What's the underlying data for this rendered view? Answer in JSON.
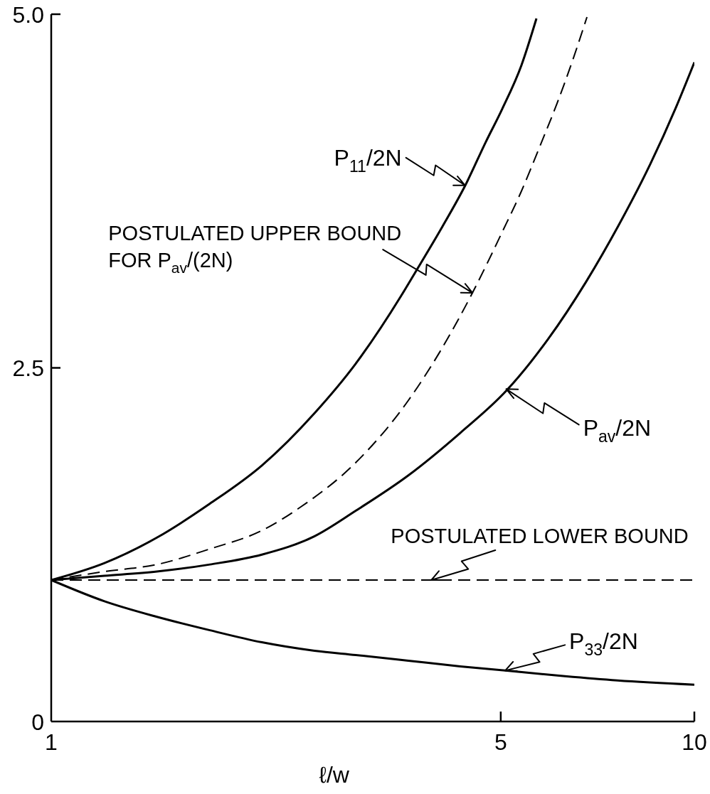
{
  "chart_data": {
    "type": "line",
    "xlabel": "ℓ/w",
    "log": "x",
    "xlim": [
      1,
      10
    ],
    "xticks": [
      1,
      5,
      10
    ],
    "ylim": [
      0,
      5
    ],
    "yticks": [
      0,
      2.5,
      {
        "value": 5,
        "label": "5.0"
      }
    ],
    "series": [
      {
        "color": "#000000",
        "line_style": "solid",
        "x": [
          1,
          1.21,
          1.46,
          1.765,
          2.126,
          2.567,
          2.975,
          3.501,
          3.676,
          4.059,
          4.404,
          4.743,
          5.026,
          5.385,
          5.682
        ],
        "values": [
          1.0,
          1.12,
          1.3,
          1.54,
          1.81,
          2.18,
          2.53,
          3.01,
          3.17,
          3.5,
          3.79,
          4.1,
          4.33,
          4.64,
          4.97
        ]
      },
      {
        "color": "#000000",
        "line_style": "dashed",
        "x": [
          1,
          1.21,
          1.46,
          1.765,
          2.126,
          2.449,
          2.975,
          3.592,
          4.029,
          4.518,
          5.026,
          5.385,
          5.768,
          6.117,
          6.486,
          6.808
        ],
        "values": [
          1.0,
          1.06,
          1.11,
          1.22,
          1.35,
          1.52,
          1.83,
          2.27,
          2.62,
          3.03,
          3.46,
          3.75,
          4.08,
          4.37,
          4.69,
          4.98
        ]
      },
      {
        "color": "#000000",
        "line_style": "solid",
        "x": [
          1,
          1.21,
          1.46,
          1.765,
          2.126,
          2.567,
          2.975,
          3.592,
          4.325,
          5.105,
          5.917,
          6.79,
          7.63,
          8.54,
          9.36,
          10
        ],
        "values": [
          1.0,
          1.03,
          1.06,
          1.11,
          1.18,
          1.31,
          1.49,
          1.74,
          2.04,
          2.34,
          2.7,
          3.11,
          3.51,
          3.94,
          4.34,
          4.66
        ]
      },
      {
        "color": "#000000",
        "line_style": "dashed",
        "x": [
          1,
          10
        ],
        "values": [
          1.0,
          1.0
        ]
      },
      {
        "color": "#000000",
        "line_style": "solid",
        "x": [
          1,
          1.21,
          1.46,
          1.765,
          2.126,
          2.567,
          2.975,
          3.592,
          4.325,
          5.08,
          6.29,
          7.59,
          10
        ],
        "values": [
          1.0,
          0.85,
          0.74,
          0.645,
          0.56,
          0.5,
          0.47,
          0.43,
          0.39,
          0.36,
          0.32,
          0.29,
          0.26
        ]
      }
    ],
    "annotations": [
      {
        "text": "P$_{11}$/2N",
        "x": 4.4,
        "y": 3.79
      },
      {
        "text": "POSTULATED UPPER BOUND FOR P$_{av}$/(2N)",
        "x": 4.52,
        "y": 3.03
      },
      {
        "text": "P$_{av}$/2N",
        "x": 5.1,
        "y": 2.35
      },
      {
        "text": "POSTULATED LOWER BOUND",
        "x": 3.9,
        "y": 1.0
      },
      {
        "text": "P$_{33}$/2N",
        "x": 5.08,
        "y": 0.36
      }
    ]
  }
}
